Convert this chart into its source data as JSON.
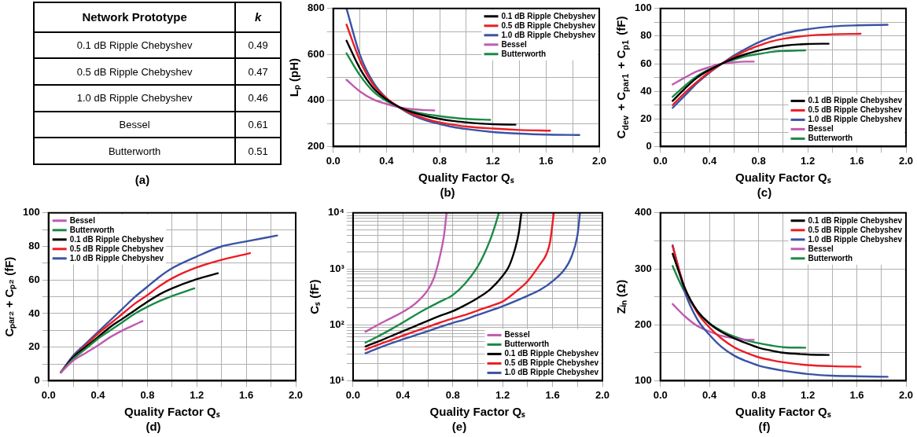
{
  "chart_data": [
    {
      "type": "other",
      "xlabel": "Network Prototype",
      "ylabel": "k",
      "categories": [
        "0.1 dB Ripple Chebyshev",
        "0.5 dB Ripple Chebyshev",
        "1.0 dB Ripple Chebyshev",
        "Bessel",
        "Butterworth"
      ],
      "values": [
        0.49,
        0.47,
        0.46,
        0.61,
        0.51
      ],
      "data_labels": true,
      "annotations": [
        "(a)"
      ]
    },
    {
      "type": "line",
      "xlabel": "Quality Factor Qₛ",
      "ylabel": "Lₚ (pH)",
      "annotations": [
        "(b)"
      ],
      "xlim": [
        0,
        2
      ],
      "ylim": [
        200,
        800
      ],
      "xticks": [
        {
          "value": 0,
          "label": "0.0"
        },
        {
          "value": 0.2,
          "label": null
        },
        0.4,
        {
          "value": 0.6,
          "label": null
        },
        0.8,
        {
          "value": 1,
          "label": null
        },
        1.2,
        {
          "value": 1.4,
          "label": null
        },
        1.6,
        {
          "value": 1.8,
          "label": null
        },
        {
          "value": 2,
          "label": "2.0"
        }
      ],
      "yticks": [
        200,
        {
          "value": 300,
          "label": null
        },
        400,
        {
          "value": 500,
          "label": null
        },
        600,
        {
          "value": 700,
          "label": null
        },
        800
      ],
      "grid": true,
      "legend": "top right",
      "marker": "none",
      "line_style": "solid",
      "series": [
        {
          "name": "0.1 dB Ripple Chebyshev",
          "color": "#000000",
          "x": [
            0.1,
            0.2,
            0.3,
            0.4,
            0.5,
            0.6,
            0.7,
            0.8,
            0.9,
            1.0,
            1.1,
            1.2,
            1.37
          ],
          "values": [
            660,
            540,
            455,
            405,
            370,
            348,
            332,
            320,
            311,
            305,
            300,
            297,
            295
          ]
        },
        {
          "name": "0.5 dB Ripple Chebyshev",
          "color": "#ed1c24",
          "x": [
            0.1,
            0.2,
            0.3,
            0.4,
            0.5,
            0.6,
            0.7,
            0.8,
            0.9,
            1.0,
            1.2,
            1.4,
            1.63
          ],
          "values": [
            730,
            575,
            470,
            410,
            370,
            340,
            320,
            305,
            295,
            287,
            278,
            272,
            269
          ]
        },
        {
          "name": "1.0 dB Ripple Chebyshev",
          "color": "#3953a4",
          "x": [
            0.1,
            0.2,
            0.3,
            0.4,
            0.5,
            0.6,
            0.7,
            0.8,
            0.9,
            1.0,
            1.2,
            1.4,
            1.6,
            1.85
          ],
          "values": [
            800,
            600,
            480,
            410,
            368,
            335,
            313,
            298,
            285,
            276,
            263,
            256,
            252,
            250
          ]
        },
        {
          "name": "Bessel",
          "color": "#c05ab0",
          "x": [
            0.1,
            0.2,
            0.3,
            0.4,
            0.5,
            0.6,
            0.7,
            0.76
          ],
          "values": [
            490,
            440,
            405,
            385,
            370,
            362,
            358,
            357
          ]
        },
        {
          "name": "Butterworth",
          "color": "#1a8a44",
          "x": [
            0.1,
            0.2,
            0.3,
            0.4,
            0.5,
            0.6,
            0.7,
            0.8,
            0.9,
            1.0,
            1.18
          ],
          "values": [
            605,
            510,
            440,
            398,
            370,
            352,
            340,
            332,
            325,
            320,
            316
          ]
        }
      ]
    },
    {
      "type": "line",
      "xlabel": "Quality Factor Qₛ",
      "ylabel": "C$_{dev}$ + C$_{par1}$ + C$_{p1}$ (fF)",
      "annotations": [
        "(c)"
      ],
      "xlim": [
        0,
        2
      ],
      "ylim": [
        0,
        100
      ],
      "xticks": [
        {
          "value": 0,
          "label": "0.0"
        },
        {
          "value": 0.2,
          "label": null
        },
        0.4,
        {
          "value": 0.6,
          "label": null
        },
        0.8,
        {
          "value": 1,
          "label": null
        },
        1.2,
        {
          "value": 1.4,
          "label": null
        },
        1.6,
        {
          "value": 1.8,
          "label": null
        },
        {
          "value": 2,
          "label": "2.0"
        }
      ],
      "yticks": [
        0,
        {
          "value": 10,
          "label": null
        },
        20,
        {
          "value": 30,
          "label": null
        },
        40,
        {
          "value": 50,
          "label": null
        },
        60,
        {
          "value": 70,
          "label": null
        },
        80,
        {
          "value": 90,
          "label": null
        },
        100
      ],
      "grid": true,
      "legend": "bottom right",
      "marker": "none",
      "line_style": "solid",
      "series": [
        {
          "name": "0.1 dB Ripple Chebyshev",
          "color": "#000000",
          "x": [
            0.1,
            0.2,
            0.3,
            0.4,
            0.5,
            0.6,
            0.7,
            0.8,
            0.9,
            1.0,
            1.2,
            1.37
          ],
          "values": [
            33,
            42,
            50,
            55.5,
            60,
            64,
            67,
            69.5,
            71.5,
            73,
            74.3,
            74.5
          ]
        },
        {
          "name": "0.5 dB Ripple Chebyshev",
          "color": "#ed1c24",
          "x": [
            0.1,
            0.2,
            0.3,
            0.4,
            0.5,
            0.6,
            0.7,
            0.8,
            0.9,
            1.0,
            1.2,
            1.4,
            1.63
          ],
          "values": [
            30,
            39,
            47,
            54,
            60,
            65,
            69.5,
            73,
            76,
            78,
            80.3,
            81.3,
            81.7
          ]
        },
        {
          "name": "1.0 dB Ripple Chebyshev",
          "color": "#3953a4",
          "x": [
            0.1,
            0.2,
            0.3,
            0.4,
            0.5,
            0.6,
            0.7,
            0.8,
            0.9,
            1.0,
            1.2,
            1.4,
            1.6,
            1.85
          ],
          "values": [
            28,
            37,
            46,
            53.5,
            60,
            66,
            71,
            75.5,
            79,
            81.7,
            85,
            87,
            87.8,
            88.2
          ]
        },
        {
          "name": "Bessel",
          "color": "#c05ab0",
          "x": [
            0.1,
            0.2,
            0.3,
            0.4,
            0.5,
            0.6,
            0.7,
            0.76
          ],
          "values": [
            45,
            50,
            54.5,
            57.5,
            60,
            61,
            61.5,
            61.5
          ]
        },
        {
          "name": "Butterworth",
          "color": "#1a8a44",
          "x": [
            0.1,
            0.2,
            0.3,
            0.4,
            0.5,
            0.6,
            0.7,
            0.8,
            0.9,
            1.0,
            1.18
          ],
          "values": [
            36,
            44,
            51,
            56,
            60,
            63,
            65.5,
            67,
            68.5,
            69.2,
            69.7
          ]
        }
      ]
    },
    {
      "type": "line",
      "xlabel": "Quality Factor Qₛ",
      "ylabel": "Cₚₐᵣ₂ + Cₚ₂ (fF)",
      "annotations": [
        "(d)"
      ],
      "xlim": [
        0,
        2
      ],
      "ylim": [
        0,
        100
      ],
      "xticks": [
        {
          "value": 0,
          "label": "0.0"
        },
        {
          "value": 0.2,
          "label": null
        },
        0.4,
        {
          "value": 0.6,
          "label": null
        },
        0.8,
        {
          "value": 1,
          "label": null
        },
        1.2,
        {
          "value": 1.4,
          "label": null
        },
        1.6,
        {
          "value": 1.8,
          "label": null
        },
        {
          "value": 2,
          "label": "2.0"
        }
      ],
      "yticks": [
        0,
        {
          "value": 10,
          "label": null
        },
        20,
        {
          "value": 30,
          "label": null
        },
        40,
        {
          "value": 50,
          "label": null
        },
        60,
        {
          "value": 70,
          "label": null
        },
        80,
        {
          "value": 90,
          "label": null
        },
        100
      ],
      "grid": true,
      "legend": "top left",
      "marker": "none",
      "line_style": "solid",
      "series": [
        {
          "name": "Bessel",
          "color": "#c05ab0",
          "x": [
            0.1,
            0.2,
            0.3,
            0.4,
            0.5,
            0.6,
            0.7,
            0.76
          ],
          "values": [
            5,
            12,
            16.5,
            21,
            26,
            30,
            33.5,
            35.5
          ]
        },
        {
          "name": "Butterworth",
          "color": "#1a8a44",
          "x": [
            0.1,
            0.2,
            0.3,
            0.4,
            0.5,
            0.6,
            0.7,
            0.8,
            0.9,
            1.0,
            1.18
          ],
          "values": [
            5,
            13,
            19,
            25,
            30,
            35,
            40,
            44,
            47.5,
            50.5,
            55
          ]
        },
        {
          "name": "0.1 dB Ripple Chebyshev",
          "color": "#000000",
          "x": [
            0.1,
            0.2,
            0.3,
            0.4,
            0.5,
            0.6,
            0.7,
            0.8,
            0.9,
            1.0,
            1.2,
            1.37
          ],
          "values": [
            5,
            14,
            20,
            26,
            32,
            37,
            42,
            47,
            51.5,
            55,
            60.5,
            64
          ]
        },
        {
          "name": "0.5 dB Ripple Chebyshev",
          "color": "#ed1c24",
          "x": [
            0.1,
            0.2,
            0.3,
            0.4,
            0.5,
            0.6,
            0.7,
            0.8,
            0.9,
            1.0,
            1.2,
            1.4,
            1.63
          ],
          "values": [
            5,
            14,
            21,
            28,
            34,
            40,
            46,
            51,
            56.5,
            61,
            67.5,
            72,
            76
          ]
        },
        {
          "name": "1.0 dB Ripple Chebyshev",
          "color": "#3953a4",
          "x": [
            0.1,
            0.2,
            0.3,
            0.4,
            0.5,
            0.6,
            0.7,
            0.8,
            0.9,
            1.0,
            1.2,
            1.4,
            1.6,
            1.85
          ],
          "values": [
            5,
            15,
            22,
            29,
            36,
            43,
            50,
            56,
            62,
            67,
            74,
            80,
            83,
            86.5
          ]
        }
      ]
    },
    {
      "type": "line",
      "xlabel": "Quality Factor Qₛ",
      "ylabel": "Cₛ (fF)",
      "annotations": [
        "(e)"
      ],
      "xlim": [
        0,
        2
      ],
      "ylim": [
        10,
        10000
      ],
      "log": true,
      "xticks": [
        {
          "value": 0,
          "label": "0.0"
        },
        {
          "value": 0.2,
          "label": null
        },
        0.4,
        {
          "value": 0.6,
          "label": null
        },
        0.8,
        {
          "value": 1,
          "label": null
        },
        1.2,
        {
          "value": 1.4,
          "label": null
        },
        1.6,
        {
          "value": 1.8,
          "label": null
        },
        {
          "value": 2,
          "label": "2.0"
        }
      ],
      "yticks": [
        {
          "value": 10,
          "label": "10¹"
        },
        {
          "value": 20,
          "label": null
        },
        {
          "value": 30,
          "label": null
        },
        {
          "value": 40,
          "label": null
        },
        {
          "value": 50,
          "label": null
        },
        {
          "value": 60,
          "label": null
        },
        {
          "value": 70,
          "label": null
        },
        {
          "value": 80,
          "label": null
        },
        {
          "value": 90,
          "label": null
        },
        {
          "value": 100,
          "label": "10²"
        },
        {
          "value": 200,
          "label": null
        },
        {
          "value": 300,
          "label": null
        },
        {
          "value": 400,
          "label": null
        },
        {
          "value": 500,
          "label": null
        },
        {
          "value": 600,
          "label": null
        },
        {
          "value": 700,
          "label": null
        },
        {
          "value": 800,
          "label": null
        },
        {
          "value": 900,
          "label": null
        },
        {
          "value": 1000,
          "label": "10³"
        },
        {
          "value": 2000,
          "label": null
        },
        {
          "value": 3000,
          "label": null
        },
        {
          "value": 4000,
          "label": null
        },
        {
          "value": 5000,
          "label": null
        },
        {
          "value": 6000,
          "label": null
        },
        {
          "value": 7000,
          "label": null
        },
        {
          "value": 8000,
          "label": null
        },
        {
          "value": 9000,
          "label": null
        },
        {
          "value": 10000,
          "label": "10⁴"
        }
      ],
      "grid": true,
      "legend": "bottom right",
      "marker": "none",
      "line_style": "solid",
      "series": [
        {
          "name": "Bessel",
          "color": "#c05ab0",
          "x": [
            0.1,
            0.2,
            0.3,
            0.4,
            0.5,
            0.6,
            0.65,
            0.7,
            0.73,
            0.75
          ],
          "values": [
            75,
            100,
            130,
            170,
            240,
            420,
            700,
            1800,
            4000,
            10000
          ]
        },
        {
          "name": "Butterworth",
          "color": "#1a8a44",
          "x": [
            0.1,
            0.2,
            0.3,
            0.4,
            0.5,
            0.6,
            0.7,
            0.8,
            0.9,
            1.0,
            1.05,
            1.1,
            1.14,
            1.17
          ],
          "values": [
            48,
            62,
            82,
            110,
            150,
            200,
            260,
            340,
            550,
            1100,
            1800,
            3300,
            6000,
            10000
          ]
        },
        {
          "name": "0.1 dB Ripple Chebyshev",
          "color": "#000000",
          "x": [
            0.1,
            0.2,
            0.3,
            0.4,
            0.5,
            0.6,
            0.7,
            0.8,
            0.9,
            1.0,
            1.1,
            1.2,
            1.25,
            1.3,
            1.33,
            1.35
          ],
          "values": [
            41,
            50,
            62,
            77,
            95,
            118,
            145,
            175,
            225,
            300,
            430,
            750,
            1100,
            2300,
            4500,
            10000
          ]
        },
        {
          "name": "0.5 dB Ripple Chebyshev",
          "color": "#ed1c24",
          "x": [
            0.1,
            0.2,
            0.3,
            0.4,
            0.5,
            0.6,
            0.7,
            0.8,
            0.9,
            1.0,
            1.1,
            1.2,
            1.3,
            1.4,
            1.5,
            1.55,
            1.58,
            1.61
          ],
          "values": [
            36,
            44,
            53,
            64,
            77,
            92,
            110,
            130,
            150,
            180,
            215,
            260,
            380,
            600,
            1200,
            1800,
            3000,
            10000
          ]
        },
        {
          "name": "1.0 dB Ripple Chebyshev",
          "color": "#3953a4",
          "x": [
            0.1,
            0.2,
            0.3,
            0.4,
            0.5,
            0.6,
            0.7,
            0.8,
            0.9,
            1.0,
            1.2,
            1.4,
            1.5,
            1.6,
            1.7,
            1.75,
            1.8,
            1.82
          ],
          "values": [
            31,
            38,
            46,
            55,
            65,
            77,
            92,
            108,
            125,
            150,
            215,
            330,
            420,
            600,
            1000,
            1600,
            4000,
            10000
          ]
        }
      ]
    },
    {
      "type": "line",
      "xlabel": "Quality Factor Qₛ",
      "ylabel": "Zᵢₙ (Ω)",
      "annotations": [
        "(f)"
      ],
      "xlim": [
        0,
        2
      ],
      "ylim": [
        100,
        400
      ],
      "xticks": [
        {
          "value": 0,
          "label": "0.0"
        },
        {
          "value": 0.2,
          "label": null
        },
        0.4,
        {
          "value": 0.6,
          "label": null
        },
        0.8,
        {
          "value": 1,
          "label": null
        },
        1.2,
        {
          "value": 1.4,
          "label": null
        },
        1.6,
        {
          "value": 1.8,
          "label": null
        },
        {
          "value": 2,
          "label": "2.0"
        }
      ],
      "yticks": [
        100,
        {
          "value": 150,
          "label": null
        },
        200,
        {
          "value": 250,
          "label": null
        },
        300,
        {
          "value": 350,
          "label": null
        },
        400
      ],
      "grid": true,
      "legend": "top right",
      "marker": "none",
      "line_style": "solid",
      "series": [
        {
          "name": "0.1 dB Ripple Chebyshev",
          "color": "#000000",
          "x": [
            0.1,
            0.15,
            0.2,
            0.3,
            0.4,
            0.5,
            0.6,
            0.7,
            0.8,
            0.9,
            1.0,
            1.2,
            1.37
          ],
          "values": [
            327,
            295,
            265,
            225,
            202,
            187,
            176,
            167,
            159,
            154,
            150,
            147,
            146
          ]
        },
        {
          "name": "0.5 dB Ripple Chebyshev",
          "color": "#ed1c24",
          "x": [
            0.1,
            0.15,
            0.2,
            0.3,
            0.4,
            0.5,
            0.6,
            0.7,
            0.8,
            0.9,
            1.0,
            1.2,
            1.4,
            1.63
          ],
          "values": [
            340,
            300,
            265,
            222,
            195,
            175,
            160,
            150,
            142,
            137,
            133,
            128,
            126,
            125
          ]
        },
        {
          "name": "1.0 dB Ripple Chebyshev",
          "color": "#3953a4",
          "x": [
            0.1,
            0.15,
            0.2,
            0.3,
            0.4,
            0.5,
            0.6,
            0.7,
            0.8,
            0.9,
            1.0,
            1.2,
            1.4,
            1.6,
            1.85
          ],
          "values": [
            342,
            300,
            258,
            210,
            182,
            160,
            145,
            135,
            127,
            122,
            118,
            112,
            109,
            108,
            107
          ]
        },
        {
          "name": "Bessel",
          "color": "#c05ab0",
          "x": [
            0.1,
            0.2,
            0.3,
            0.4,
            0.5,
            0.6,
            0.7,
            0.76
          ],
          "values": [
            237,
            215,
            198,
            188,
            180,
            176,
            173,
            173
          ]
        },
        {
          "name": "Butterworth",
          "color": "#1a8a44",
          "x": [
            0.1,
            0.15,
            0.2,
            0.3,
            0.4,
            0.5,
            0.6,
            0.7,
            0.8,
            0.9,
            1.0,
            1.18
          ],
          "values": [
            305,
            280,
            258,
            225,
            203,
            189,
            179,
            172,
            167,
            163,
            160,
            159
          ]
        }
      ]
    }
  ]
}
